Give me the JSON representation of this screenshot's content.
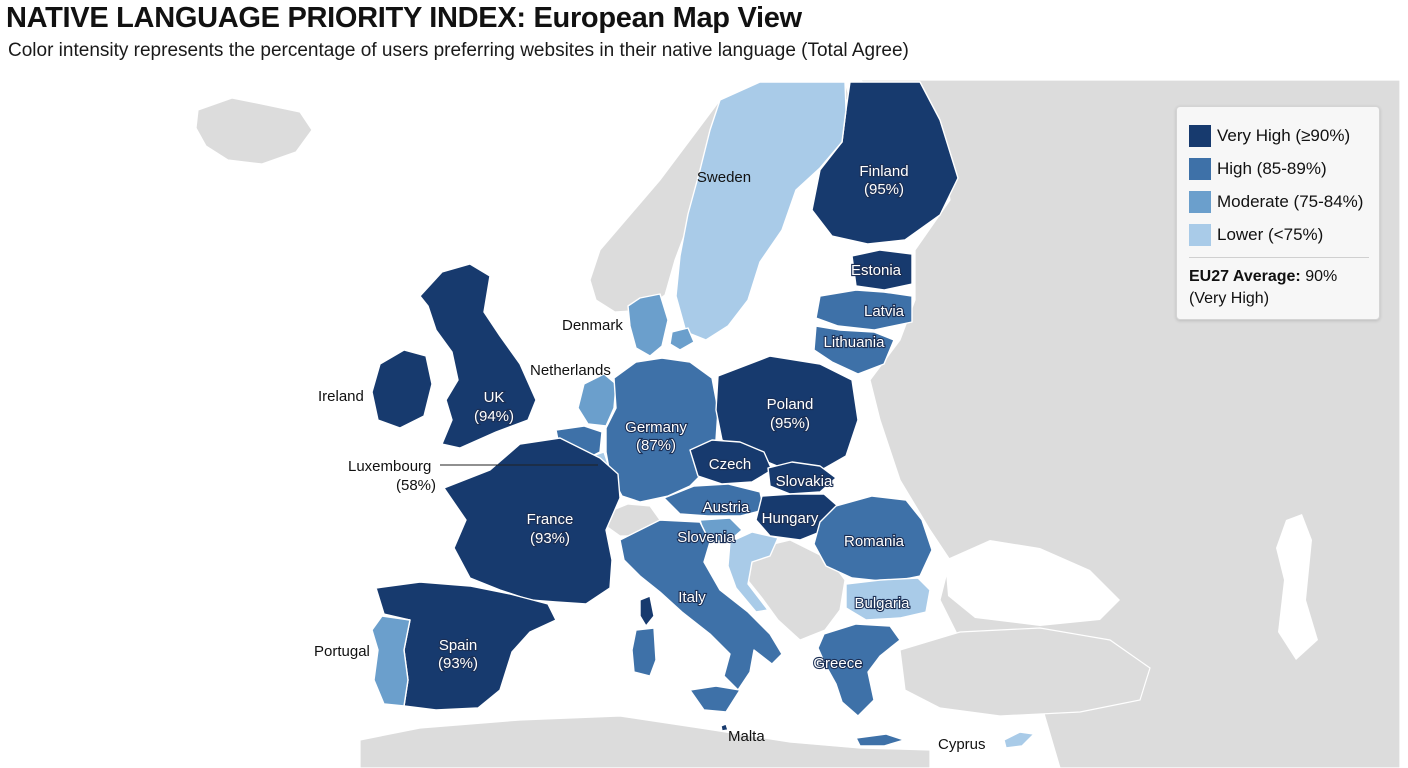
{
  "title": "NATIVE LANGUAGE PRIORITY INDEX: European Map View",
  "subtitle": "Color intensity represents the percentage of users preferring websites in their native language (Total Agree)",
  "colors": {
    "very_high": "#173a6e",
    "high": "#3e71a8",
    "moderate": "#6b9fcc",
    "lower": "#a9cbe8",
    "non_eu": "#dcdcdc",
    "sea": "#ffffff"
  },
  "legend": {
    "items": [
      {
        "label": "Very High (≥90%)",
        "color": "#173a6e"
      },
      {
        "label": "High (85-89%)",
        "color": "#3e71a8"
      },
      {
        "label": "Moderate (75-84%)",
        "color": "#6b9fcc"
      },
      {
        "label": "Lower (<75%)",
        "color": "#a9cbe8"
      }
    ],
    "avg_label": "EU27 Average:",
    "avg_value": "90%",
    "avg_category": "(Very High)"
  },
  "countries": {
    "finland": {
      "name": "Finland",
      "pct": "(95%)",
      "category": "very_high"
    },
    "sweden": {
      "name": "Sweden",
      "category": "lower"
    },
    "estonia": {
      "name": "Estonia",
      "category": "very_high"
    },
    "latvia": {
      "name": "Latvia",
      "category": "high"
    },
    "lithuania": {
      "name": "Lithuania",
      "category": "high"
    },
    "denmark": {
      "name": "Denmark",
      "category": "moderate"
    },
    "netherlands": {
      "name": "Netherlands",
      "category": "moderate"
    },
    "ireland": {
      "name": "Ireland",
      "category": "very_high"
    },
    "uk": {
      "name": "UK",
      "pct": "(94%)",
      "category": "very_high"
    },
    "luxembourg": {
      "name": "Luxembourg",
      "pct": "(58%)",
      "category": "lower"
    },
    "germany": {
      "name": "Germany",
      "pct": "(87%)",
      "category": "high"
    },
    "poland": {
      "name": "Poland",
      "pct": "(95%)",
      "category": "very_high"
    },
    "czech": {
      "name": "Czech",
      "category": "very_high"
    },
    "slovakia": {
      "name": "Slovakia",
      "category": "very_high"
    },
    "austria": {
      "name": "Austria",
      "category": "high"
    },
    "hungary": {
      "name": "Hungary",
      "category": "very_high"
    },
    "slovenia": {
      "name": "Slovenia",
      "category": "moderate"
    },
    "romania": {
      "name": "Romania",
      "category": "high"
    },
    "france": {
      "name": "France",
      "pct": "(93%)",
      "category": "very_high"
    },
    "italy": {
      "name": "Italy",
      "category": "high"
    },
    "bulgaria": {
      "name": "Bulgaria",
      "category": "lower"
    },
    "greece": {
      "name": "Greece",
      "category": "high"
    },
    "spain": {
      "name": "Spain",
      "pct": "(93%)",
      "category": "very_high"
    },
    "portugal": {
      "name": "Portugal",
      "category": "moderate"
    },
    "malta": {
      "name": "Malta"
    },
    "cyprus": {
      "name": "Cyprus",
      "category": "lower"
    }
  }
}
